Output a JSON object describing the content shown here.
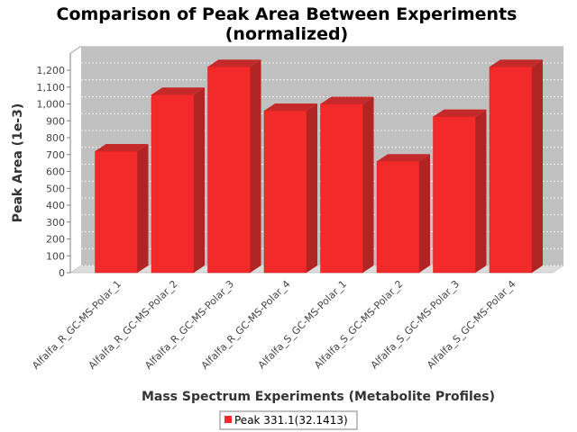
{
  "chart_data": {
    "type": "bar",
    "title_line1": "Comparison of Peak Area Between Experiments",
    "title_line2": "(normalized)",
    "xlabel": "Mass Spectrum Experiments (Metabolite Profiles)",
    "ylabel": "Peak Area (1e-3)",
    "ylim": [
      0,
      1300
    ],
    "yticks": [
      0,
      100,
      200,
      300,
      400,
      500,
      600,
      700,
      800,
      900,
      1000,
      1100,
      1200
    ],
    "ytick_labels": [
      "0",
      "100",
      "200",
      "300",
      "400",
      "500",
      "600",
      "700",
      "800",
      "900",
      "1,000",
      "1,100",
      "1,200"
    ],
    "categories": [
      "Alfalfa_R_GC-MS-Polar_1",
      "Alfalfa_R_GC-MS-Polar_2",
      "Alfalfa_R_GC-MS-Polar_3",
      "Alfalfa_R_GC-MS-Polar_4",
      "Alfalfa_S_GC-MS-Polar_1",
      "Alfalfa_S_GC-MS-Polar_2",
      "Alfalfa_S_GC-MS-Polar_3",
      "Alfalfa_S_GC-MS-Polar_4"
    ],
    "series": [
      {
        "name": "Peak 331.1(32.1413)",
        "values": [
          720,
          1055,
          1220,
          960,
          1000,
          660,
          925,
          1220
        ]
      }
    ],
    "grid": true,
    "legend_position": "bottom",
    "colors": {
      "bar_front": "#f22a2a",
      "bar_side": "#b12424",
      "bar_top": "#c42a2a",
      "plot_back": "#c0c0c0",
      "plot_floor": "#dcdcdc"
    }
  }
}
